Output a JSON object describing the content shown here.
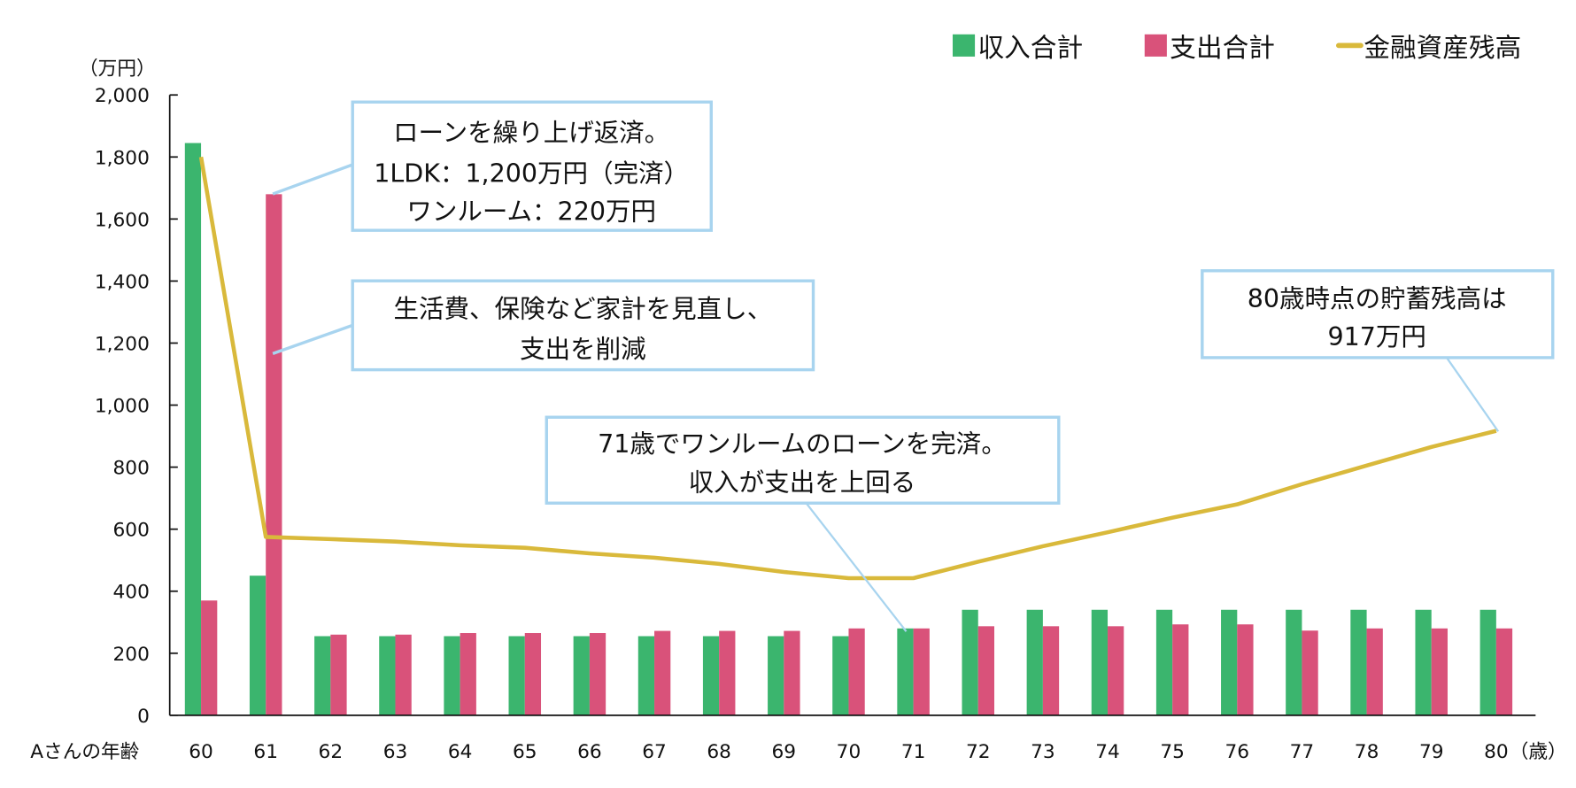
{
  "chart_data": {
    "type": "bar+line",
    "yunit": "（万円）",
    "xlabel": "Aさんの年齢",
    "xunit": "（歳）",
    "ylim": [
      0,
      2000
    ],
    "yticks": [
      "0",
      "200",
      "400",
      "600",
      "800",
      "1,000",
      "1,200",
      "1,400",
      "1,600",
      "1,800",
      "2,000"
    ],
    "categories": [
      "60",
      "61",
      "62",
      "63",
      "64",
      "65",
      "66",
      "67",
      "68",
      "69",
      "70",
      "71",
      "72",
      "73",
      "74",
      "75",
      "76",
      "77",
      "78",
      "79",
      "80"
    ],
    "legend_position": "top-right",
    "grid": false,
    "series": [
      {
        "name": "収入合計",
        "type": "bar",
        "color": "#3bb56e",
        "values": [
          1845,
          450,
          255,
          255,
          255,
          255,
          255,
          255,
          255,
          255,
          255,
          280,
          340,
          340,
          340,
          340,
          340,
          340,
          340,
          340,
          340
        ]
      },
      {
        "name": "支出合計",
        "type": "bar",
        "color": "#d9527a",
        "values": [
          370,
          1680,
          260,
          260,
          265,
          265,
          265,
          272,
          272,
          272,
          280,
          280,
          287,
          287,
          287,
          293,
          293,
          273,
          280,
          280,
          280
        ]
      },
      {
        "name": "金融資産残高",
        "type": "line",
        "color": "#d9b93b",
        "values": [
          1800,
          575,
          568,
          560,
          548,
          540,
          522,
          508,
          488,
          462,
          442,
          442,
          495,
          545,
          590,
          637,
          680,
          745,
          805,
          865,
          917
        ]
      }
    ],
    "annotations": [
      {
        "lines": [
          "ローンを繰り上げ返済。",
          "1LDK：1,200万円（完済）",
          "ワンルーム：220万円"
        ]
      },
      {
        "lines": [
          "生活費、保険など家計を見直し、",
          "支出を削減"
        ]
      },
      {
        "lines": [
          "71歳でワンルームのローンを完済。",
          "収入が支出を上回る"
        ]
      },
      {
        "lines": [
          "80歳時点の貯蓄残高は",
          "917万円"
        ]
      }
    ],
    "callout_border_color": "#a8d4ef"
  }
}
